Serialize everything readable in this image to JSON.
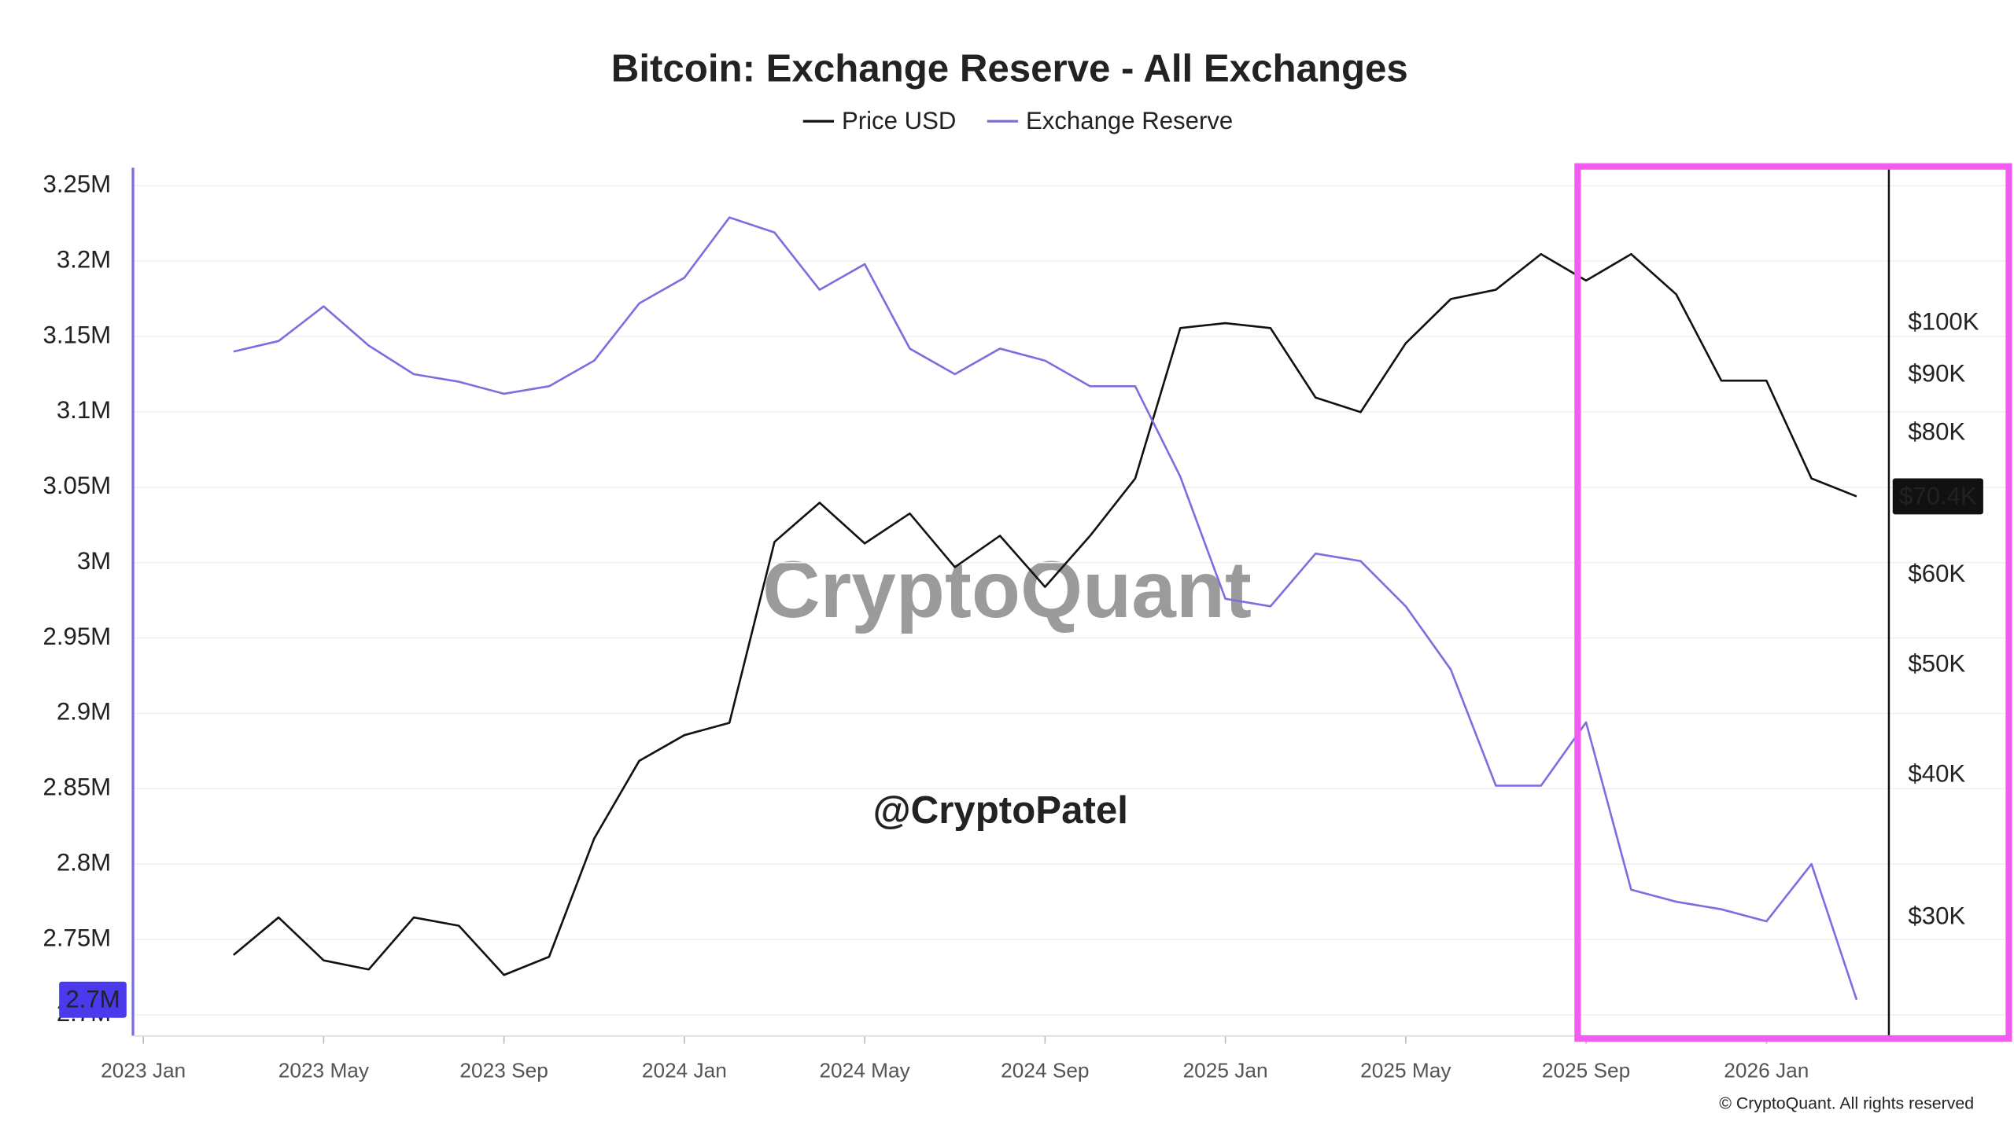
{
  "chart_data": {
    "type": "line",
    "title": "Bitcoin: Exchange Reserve - All Exchanges",
    "x": [
      "2023-03",
      "2023-04",
      "2023-05",
      "2023-06",
      "2023-07",
      "2023-08",
      "2023-09",
      "2023-10",
      "2023-11",
      "2023-12",
      "2024-01",
      "2024-02",
      "2024-03",
      "2024-04",
      "2024-05",
      "2024-06",
      "2024-07",
      "2024-08",
      "2024-09",
      "2024-10",
      "2024-11",
      "2024-12",
      "2025-01",
      "2025-02",
      "2025-03",
      "2025-04",
      "2025-05",
      "2025-06",
      "2025-07",
      "2025-08",
      "2025-09",
      "2025-10",
      "2025-11",
      "2025-12",
      "2026-01",
      "2026-02",
      "2026-03"
    ],
    "xlim": [
      "2023-01",
      "2026-04"
    ],
    "xticks": [
      {
        "value": "2023-01",
        "label": "2023 Jan"
      },
      {
        "value": "2023-05",
        "label": "2023 May"
      },
      {
        "value": "2023-09",
        "label": "2023 Sep"
      },
      {
        "value": "2024-01",
        "label": "2024 Jan"
      },
      {
        "value": "2024-05",
        "label": "2024 May"
      },
      {
        "value": "2024-09",
        "label": "2024 Sep"
      },
      {
        "value": "2025-01",
        "label": "2025 Jan"
      },
      {
        "value": "2025-05",
        "label": "2025 May"
      },
      {
        "value": "2025-09",
        "label": "2025 Sep"
      },
      {
        "value": "2026-01",
        "label": "2026 Jan"
      }
    ],
    "ylim": [
      2686000,
      3262000
    ],
    "yticks": [
      {
        "value": 2700000,
        "label": "2.7M"
      },
      {
        "value": 2750000,
        "label": "2.75M"
      },
      {
        "value": 2800000,
        "label": "2.8M"
      },
      {
        "value": 2850000,
        "label": "2.85M"
      },
      {
        "value": 2900000,
        "label": "2.9M"
      },
      {
        "value": 2950000,
        "label": "2.95M"
      },
      {
        "value": 3000000,
        "label": "3M"
      },
      {
        "value": 3050000,
        "label": "3.05M"
      },
      {
        "value": 3100000,
        "label": "3.1M"
      },
      {
        "value": 3150000,
        "label": "3.15M"
      },
      {
        "value": 3200000,
        "label": "3.2M"
      },
      {
        "value": 3250000,
        "label": "3.25M"
      }
    ],
    "y2lim": [
      23600,
      137000
    ],
    "y2scale": "log",
    "y2ticks": [
      {
        "value": 30000,
        "label": "$30K"
      },
      {
        "value": 40000,
        "label": "$40K"
      },
      {
        "value": 50000,
        "label": "$50K"
      },
      {
        "value": 60000,
        "label": "$60K"
      },
      {
        "value": 70000,
        "label": "$70K"
      },
      {
        "value": 80000,
        "label": "$80K"
      },
      {
        "value": 90000,
        "label": "$90K"
      },
      {
        "value": 100000,
        "label": "$100K"
      }
    ],
    "grid": true,
    "legend": "top",
    "series": [
      {
        "name": "Price USD",
        "color": "#111111",
        "axis": "y2",
        "values": [
          27800,
          30000,
          27500,
          27000,
          30000,
          29500,
          26700,
          27700,
          35200,
          41200,
          43400,
          44500,
          64200,
          69500,
          64000,
          68000,
          61000,
          65000,
          58600,
          65000,
          73000,
          99000,
          100000,
          99000,
          86000,
          83500,
          96000,
          105000,
          107000,
          115000,
          109000,
          115000,
          106000,
          89000,
          89000,
          73000,
          70400
        ],
        "value_labels": [
          null,
          null,
          null,
          null,
          null,
          null,
          null,
          null,
          null,
          null,
          null,
          null,
          null,
          null,
          null,
          null,
          null,
          null,
          null,
          null,
          null,
          null,
          null,
          null,
          null,
          null,
          null,
          null,
          null,
          null,
          null,
          null,
          null,
          null,
          null,
          null,
          "$70.4K"
        ]
      },
      {
        "name": "Exchange Reserve",
        "color": "#7b6fe0",
        "axis": "y",
        "values": [
          3140000,
          3147000,
          3170000,
          3144000,
          3125000,
          3120000,
          3112000,
          3117000,
          3134000,
          3172000,
          3189000,
          3229000,
          3219000,
          3181000,
          3198000,
          3142000,
          3125000,
          3142000,
          3134000,
          3117000,
          3117000,
          3057000,
          2976000,
          2971000,
          3006000,
          3001000,
          2971000,
          2929000,
          2852000,
          2852000,
          2894000,
          2783000,
          2775000,
          2770000,
          2762000,
          2800000,
          2710000
        ],
        "value_labels": [
          null,
          null,
          null,
          null,
          null,
          null,
          null,
          null,
          null,
          null,
          null,
          null,
          null,
          null,
          null,
          null,
          null,
          null,
          null,
          null,
          null,
          null,
          null,
          null,
          null,
          null,
          null,
          null,
          null,
          null,
          null,
          null,
          null,
          null,
          null,
          null,
          "2.7M"
        ]
      }
    ],
    "watermark": "CryptoQuant",
    "annotations": [
      "@CryptoPatel"
    ],
    "credit": "© CryptoQuant. All rights reserved"
  }
}
